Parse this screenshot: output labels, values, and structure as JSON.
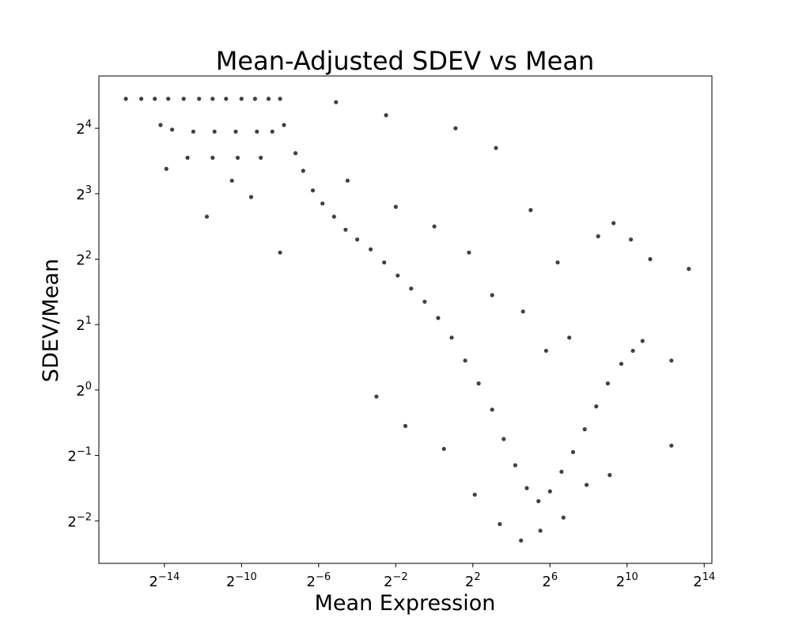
{
  "chart_data": {
    "type": "scatter",
    "title": "Mean-Adjusted SDEV vs Mean",
    "xlabel": "Mean Expression",
    "ylabel": "SDEV/Mean",
    "x_scale": "log2",
    "y_scale": "log2",
    "x_ticks": [
      {
        "base": "2",
        "exp": "−14",
        "value": -14
      },
      {
        "base": "2",
        "exp": "−10",
        "value": -10
      },
      {
        "base": "2",
        "exp": "−6",
        "value": -6
      },
      {
        "base": "2",
        "exp": "−2",
        "value": -2
      },
      {
        "base": "2",
        "exp": "2",
        "value": 2
      },
      {
        "base": "2",
        "exp": "6",
        "value": 6
      },
      {
        "base": "2",
        "exp": "10",
        "value": 10
      },
      {
        "base": "2",
        "exp": "14",
        "value": 14
      }
    ],
    "y_ticks": [
      {
        "base": "2",
        "exp": "−2",
        "value": -2
      },
      {
        "base": "2",
        "exp": "−1",
        "value": -1
      },
      {
        "base": "2",
        "exp": "0",
        "value": 0
      },
      {
        "base": "2",
        "exp": "1",
        "value": 1
      },
      {
        "base": "2",
        "exp": "2",
        "value": 2
      },
      {
        "base": "2",
        "exp": "3",
        "value": 3
      },
      {
        "base": "2",
        "exp": "4",
        "value": 4
      }
    ],
    "xlim_log2": [
      -17.4,
      14.4
    ],
    "ylim_log2": [
      -2.65,
      4.8
    ],
    "grid": false,
    "legend": false,
    "marker_color": "#000000",
    "marker_opacity": 0.75,
    "points_log2": [
      [
        -16.0,
        4.45
      ],
      [
        -15.2,
        4.45
      ],
      [
        -14.5,
        4.45
      ],
      [
        -13.8,
        4.45
      ],
      [
        -13.0,
        4.45
      ],
      [
        -12.2,
        4.45
      ],
      [
        -11.5,
        4.45
      ],
      [
        -10.8,
        4.45
      ],
      [
        -10.0,
        4.45
      ],
      [
        -9.3,
        4.45
      ],
      [
        -8.6,
        4.45
      ],
      [
        -8.0,
        4.45
      ],
      [
        -14.2,
        4.05
      ],
      [
        -13.6,
        3.98
      ],
      [
        -12.5,
        3.95
      ],
      [
        -11.4,
        3.95
      ],
      [
        -10.3,
        3.95
      ],
      [
        -9.2,
        3.95
      ],
      [
        -8.4,
        3.95
      ],
      [
        -13.9,
        3.38
      ],
      [
        -12.8,
        3.55
      ],
      [
        -11.5,
        3.55
      ],
      [
        -10.2,
        3.55
      ],
      [
        -9.0,
        3.55
      ],
      [
        -7.8,
        4.05
      ],
      [
        -7.2,
        3.62
      ],
      [
        -6.8,
        3.35
      ],
      [
        -6.3,
        3.05
      ],
      [
        -5.8,
        2.85
      ],
      [
        -5.2,
        2.65
      ],
      [
        -4.6,
        2.45
      ],
      [
        -4.0,
        2.3
      ],
      [
        -3.3,
        2.15
      ],
      [
        -2.6,
        1.95
      ],
      [
        -1.9,
        1.75
      ],
      [
        -1.2,
        1.55
      ],
      [
        -0.5,
        1.35
      ],
      [
        0.2,
        1.1
      ],
      [
        0.9,
        0.8
      ],
      [
        1.6,
        0.45
      ],
      [
        2.3,
        0.1
      ],
      [
        3.0,
        -0.3
      ],
      [
        3.6,
        -0.75
      ],
      [
        4.2,
        -1.15
      ],
      [
        4.8,
        -1.5
      ],
      [
        5.4,
        -1.7
      ],
      [
        6.0,
        -1.55
      ],
      [
        6.6,
        -1.25
      ],
      [
        7.2,
        -0.95
      ],
      [
        7.8,
        -0.6
      ],
      [
        8.4,
        -0.25
      ],
      [
        9.0,
        0.1
      ],
      [
        9.7,
        0.4
      ],
      [
        10.3,
        0.6
      ],
      [
        10.8,
        0.75
      ],
      [
        11.2,
        2.0
      ],
      [
        12.3,
        -0.85
      ],
      [
        12.3,
        0.45
      ],
      [
        13.2,
        1.85
      ],
      [
        6.4,
        1.95
      ],
      [
        5.0,
        2.75
      ],
      [
        3.2,
        3.7
      ],
      [
        1.1,
        4.0
      ],
      [
        -2.5,
        4.2
      ],
      [
        -5.1,
        4.4
      ],
      [
        -3.0,
        -0.1
      ],
      [
        -1.5,
        -0.55
      ],
      [
        0.5,
        -0.9
      ],
      [
        2.1,
        -1.6
      ],
      [
        3.4,
        -2.05
      ],
      [
        4.5,
        -2.3
      ],
      [
        5.5,
        -2.15
      ],
      [
        6.7,
        -1.95
      ],
      [
        7.9,
        -1.45
      ],
      [
        9.1,
        -1.3
      ],
      [
        8.5,
        2.35
      ],
      [
        9.3,
        2.55
      ],
      [
        10.2,
        2.3
      ],
      [
        7.0,
        0.8
      ],
      [
        5.8,
        0.6
      ],
      [
        4.6,
        1.2
      ],
      [
        3.0,
        1.45
      ],
      [
        1.8,
        2.1
      ],
      [
        0.0,
        2.5
      ],
      [
        -2.0,
        2.8
      ],
      [
        -4.5,
        3.2
      ],
      [
        -8.0,
        2.1
      ],
      [
        -9.5,
        2.95
      ],
      [
        -11.8,
        2.65
      ],
      [
        -10.5,
        3.2
      ]
    ]
  }
}
